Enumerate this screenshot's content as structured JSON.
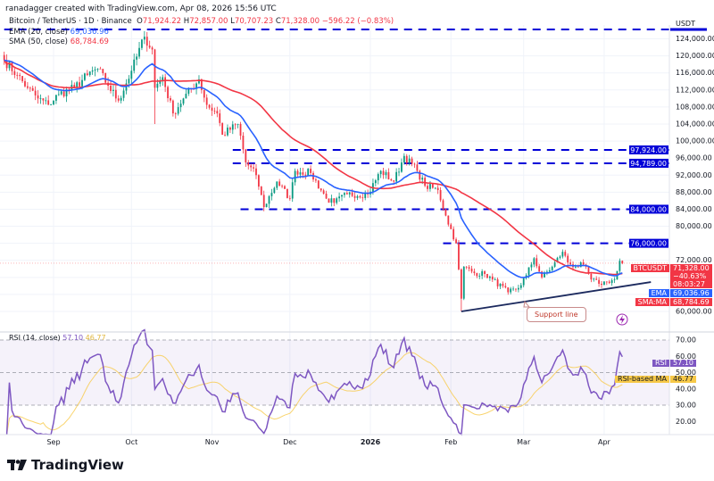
{
  "credit": "ranadagger created with TradingView.com, Apr 08, 2026 15:56 UTC",
  "symbol_title": "Bitcoin / TetherUS · 1D · Binance",
  "ohlc": {
    "o_label": "O",
    "o": "71,924.22",
    "h_label": "H",
    "h": "72,857.00",
    "l_label": "L",
    "l": "70,707.23",
    "c_label": "C",
    "c": "71,328.00",
    "change": "−596.22 (−0.83%)"
  },
  "indicators": {
    "ema": {
      "label": "EMA (20, close)",
      "value": "69,036.96",
      "color": "#2962ff",
      "period": 20
    },
    "sma": {
      "label": "SMA (50, close)",
      "value": "68,784.69",
      "color": "#f23645",
      "period": 50
    },
    "rsi": {
      "label": "RSI (14, close)",
      "value": "57.10",
      "ma_value": "46.77",
      "color": "#7e57c2",
      "ma_color": "#f7c948"
    }
  },
  "axis": {
    "currency": "USDT",
    "price_ticks": [
      "124,000.00",
      "120,000.00",
      "116,000.00",
      "112,000.00",
      "108,000.00",
      "104,000.00",
      "100,000.00",
      "96,000.00",
      "92,000.00",
      "88,000.00",
      "84,000.00",
      "80,000.00",
      "72,000.00",
      "60,000.00"
    ],
    "rsi_ticks": [
      "70.00",
      "60.00",
      "50.00",
      "40.00",
      "30.00",
      "20.00"
    ],
    "time_ticks": [
      "Sep",
      "Oct",
      "Nov",
      "Dec",
      "2026",
      "Feb",
      "Mar",
      "Apr"
    ]
  },
  "price_labels": {
    "symbol": "BTCUSDT",
    "price": "71,328.00",
    "change_pct": "−40.63%",
    "countdown": "08:03:27",
    "ema_tag": "EMA",
    "ema_value": "69,036.96",
    "sma_tag": "SMA:MA",
    "sma_value": "68,784.69",
    "rsi_tag": "RSI",
    "rsi_value": "57.10",
    "rsi_ma_tag": "RSI-based MA",
    "rsi_ma_value": "46.77"
  },
  "levels": [
    {
      "price": 126200,
      "start": "2025-08-13",
      "label": ""
    },
    {
      "price": 97924,
      "start": "2025-11-09",
      "label": "97,924.00"
    },
    {
      "price": 94789,
      "start": "2025-11-09",
      "label": "94,789.00"
    },
    {
      "price": 84000,
      "start": "2025-11-12",
      "label": "84,000.00"
    },
    {
      "price": 76000,
      "start": "2026-01-29",
      "label": "76,000.00"
    }
  ],
  "annotation": {
    "text": "Support line",
    "start": [
      "2026-02-05",
      60000
    ],
    "end": [
      "2026-04-19",
      66900
    ]
  },
  "colors": {
    "up": "#089981",
    "down": "#f23645",
    "level": "#0000d8",
    "support": "#1c2a5e"
  },
  "brand": "TradingView",
  "chart_data": {
    "type": "candlestick",
    "ylim": [
      58000,
      128000
    ],
    "rsi_levels": [
      70,
      50,
      30
    ],
    "closes": [
      [
        "2025-08-13",
        119000
      ],
      [
        "2025-08-18",
        115500
      ],
      [
        "2025-08-22",
        112500
      ],
      [
        "2025-08-26",
        110000
      ],
      [
        "2025-08-30",
        108500
      ],
      [
        "2025-09-03",
        111000
      ],
      [
        "2025-09-09",
        112500
      ],
      [
        "2025-09-14",
        115500
      ],
      [
        "2025-09-18",
        117000
      ],
      [
        "2025-09-22",
        113000
      ],
      [
        "2025-09-26",
        109500
      ],
      [
        "2025-10-01",
        116500
      ],
      [
        "2025-10-06",
        124500
      ],
      [
        "2025-10-09",
        121500
      ],
      [
        "2025-10-10",
        112500
      ],
      [
        "2025-10-13",
        115000
      ],
      [
        "2025-10-17",
        106500
      ],
      [
        "2025-10-21",
        110000
      ],
      [
        "2025-10-27",
        114500
      ],
      [
        "2025-10-30",
        108500
      ],
      [
        "2025-11-03",
        106500
      ],
      [
        "2025-11-05",
        101500
      ],
      [
        "2025-11-11",
        104000
      ],
      [
        "2025-11-14",
        95000
      ],
      [
        "2025-11-18",
        92000
      ],
      [
        "2025-11-21",
        84500
      ],
      [
        "2025-11-26",
        90500
      ],
      [
        "2025-12-01",
        86500
      ],
      [
        "2025-12-03",
        93000
      ],
      [
        "2025-12-09",
        92500
      ],
      [
        "2025-12-15",
        86500
      ],
      [
        "2025-12-18",
        85500
      ],
      [
        "2025-12-23",
        87500
      ],
      [
        "2025-12-31",
        87500
      ],
      [
        "2026-01-05",
        93000
      ],
      [
        "2026-01-10",
        90500
      ],
      [
        "2026-01-14",
        96500
      ],
      [
        "2026-01-19",
        93000
      ],
      [
        "2026-01-22",
        89500
      ],
      [
        "2026-01-27",
        88500
      ],
      [
        "2026-01-30",
        82500
      ],
      [
        "2026-02-03",
        76000
      ],
      [
        "2026-02-05",
        63000
      ],
      [
        "2026-02-06",
        70500
      ],
      [
        "2026-02-10",
        69000
      ],
      [
        "2026-02-14",
        68800
      ],
      [
        "2026-02-17",
        67500
      ],
      [
        "2026-02-23",
        64500
      ],
      [
        "2026-02-27",
        65500
      ],
      [
        "2026-03-02",
        68500
      ],
      [
        "2026-03-05",
        72500
      ],
      [
        "2026-03-08",
        68000
      ],
      [
        "2026-03-12",
        70500
      ],
      [
        "2026-03-16",
        74000
      ],
      [
        "2026-03-18",
        71500
      ],
      [
        "2026-03-21",
        70500
      ],
      [
        "2026-03-24",
        71000
      ],
      [
        "2026-03-27",
        67500
      ],
      [
        "2026-03-30",
        66500
      ],
      [
        "2026-04-02",
        67000
      ],
      [
        "2026-04-05",
        67500
      ],
      [
        "2026-04-06",
        69500
      ],
      [
        "2026-04-07",
        71900
      ],
      [
        "2026-04-08",
        71328
      ]
    ]
  }
}
